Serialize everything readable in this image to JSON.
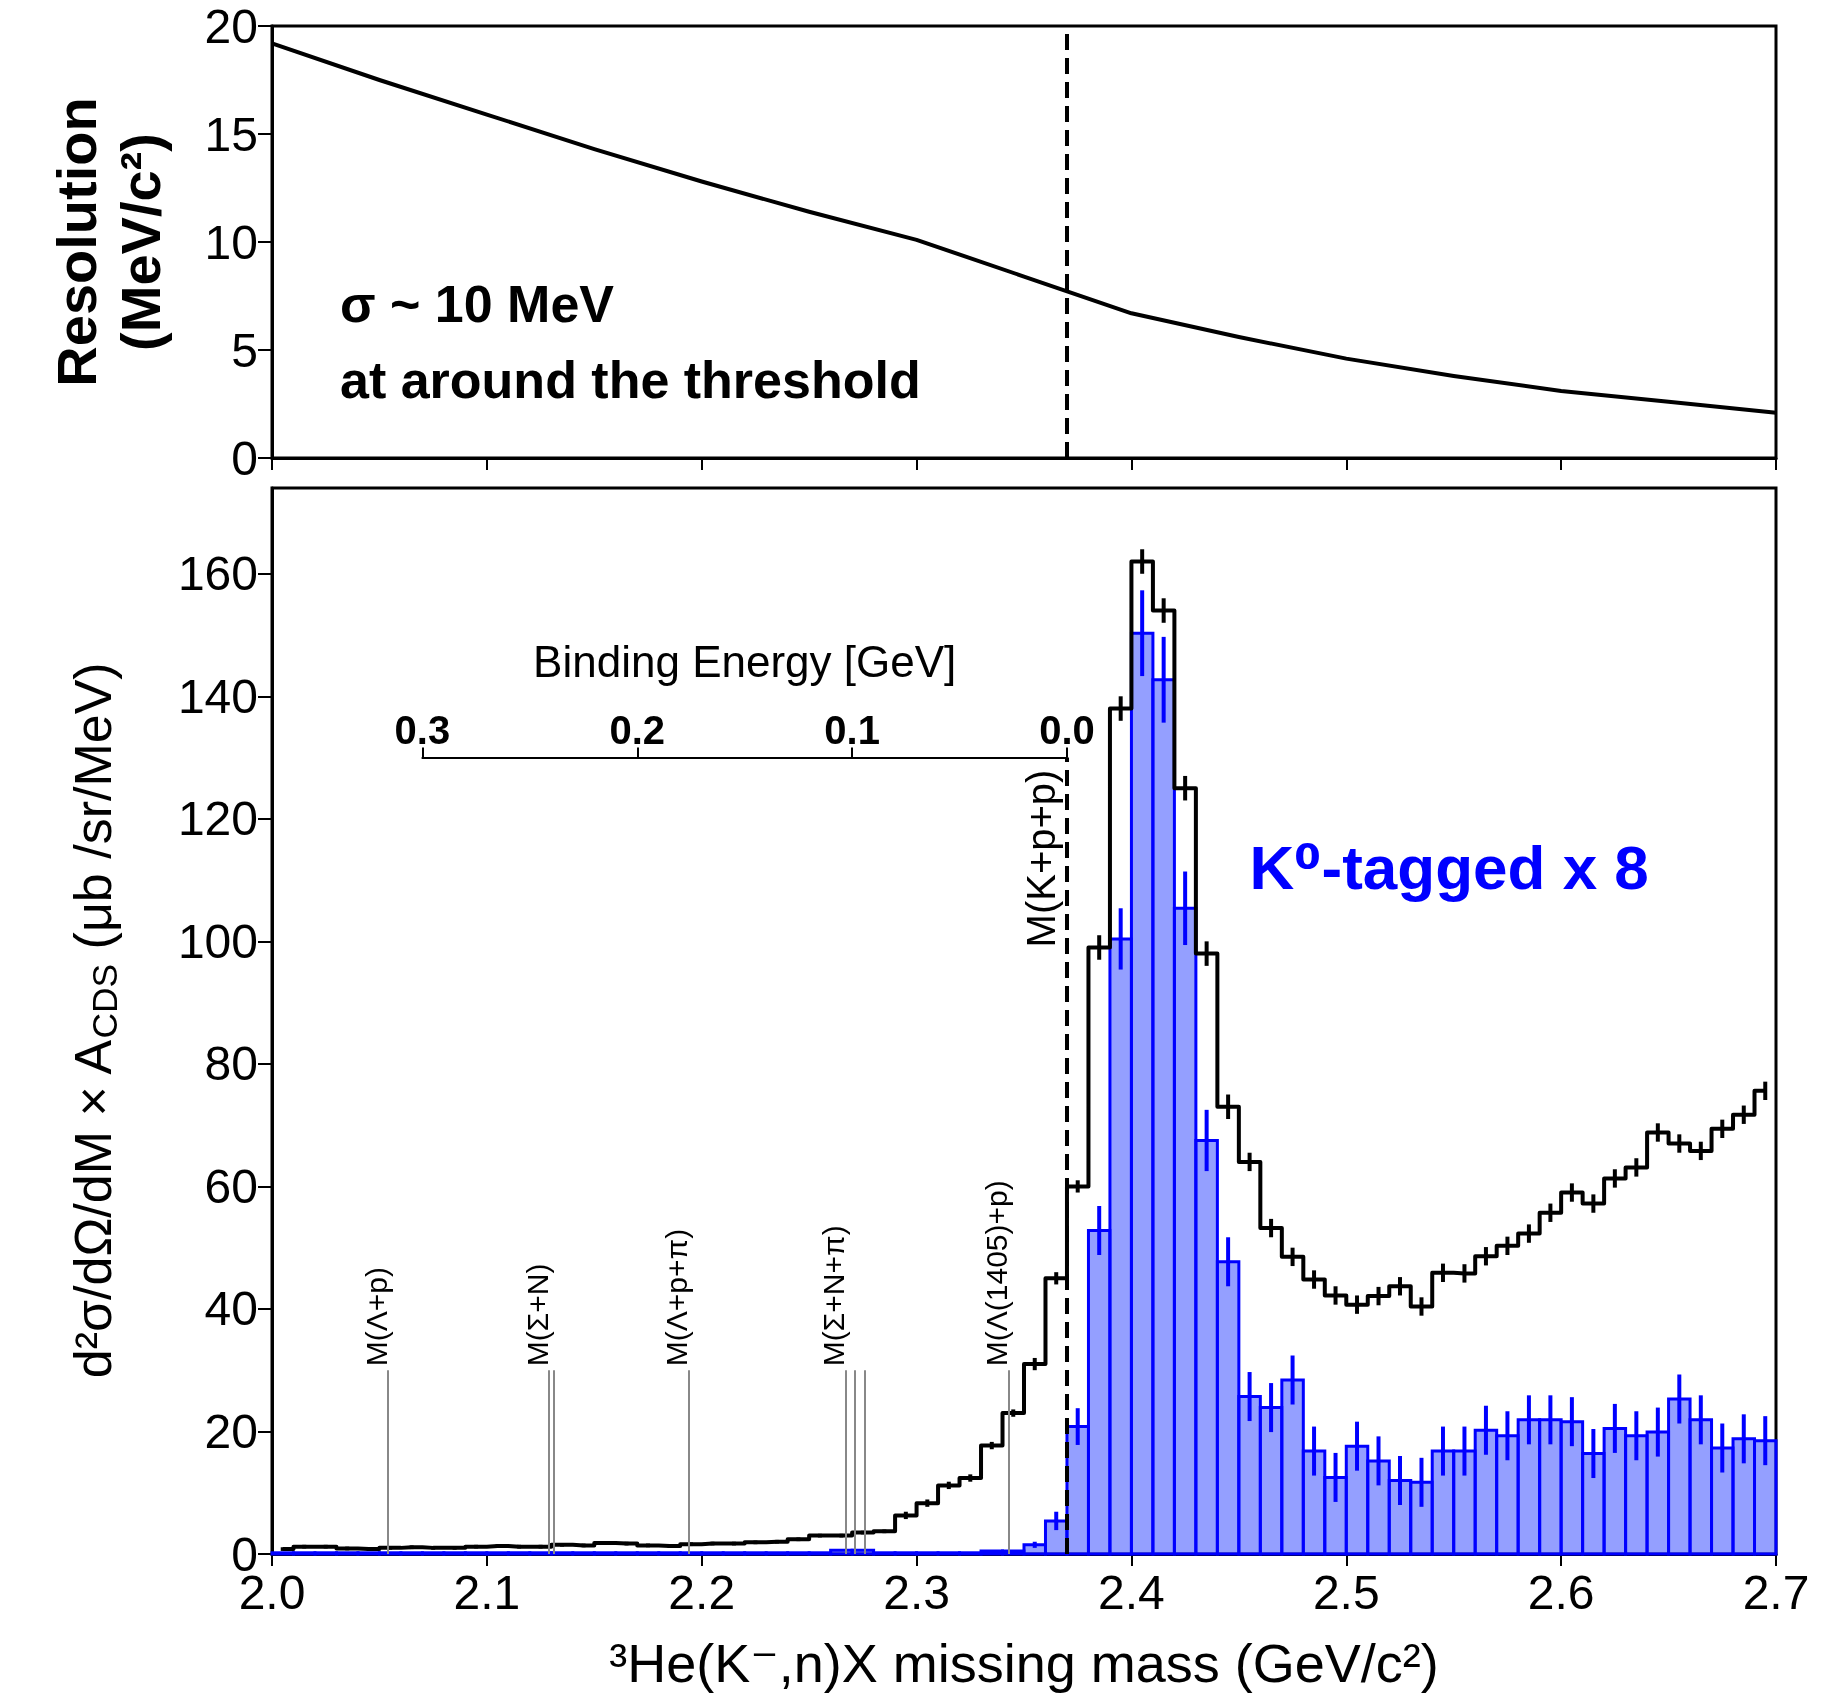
{
  "chart_data": [
    {
      "type": "line",
      "x": [
        2.0,
        2.05,
        2.1,
        2.15,
        2.2,
        2.25,
        2.3,
        2.35,
        2.4,
        2.45,
        2.5,
        2.55,
        2.6,
        2.65,
        2.7
      ],
      "values": [
        19.2,
        17.5,
        15.9,
        14.3,
        12.8,
        11.4,
        10.1,
        8.4,
        6.7,
        5.6,
        4.6,
        3.8,
        3.1,
        2.6,
        2.1
      ],
      "color": "#000000",
      "ylabel": "Resolution (MeV/c²)",
      "xlim": [
        2.0,
        2.7
      ],
      "xticks": [
        2.0,
        2.1,
        2.2,
        2.3,
        2.4,
        2.5,
        2.6,
        2.7
      ],
      "ylim": [
        0,
        20
      ],
      "yticks": [
        0,
        5,
        10,
        15,
        20
      ],
      "tick_labels": "y",
      "grid": false,
      "legend": false,
      "ref_lines": [
        {
          "axis": "x",
          "value": 2.37,
          "label": null,
          "color": "#000000",
          "line_style": "dashed"
        }
      ],
      "annotations": [
        "σ ~ 10 MeV",
        "at around the threshold"
      ]
    },
    {
      "type": "histogram",
      "bins": [
        2.0,
        2.01,
        2.02,
        2.03,
        2.04,
        2.05,
        2.06,
        2.07,
        2.08,
        2.09,
        2.1,
        2.11,
        2.12,
        2.13,
        2.14,
        2.15,
        2.16,
        2.17,
        2.18,
        2.19,
        2.2,
        2.21,
        2.22,
        2.23,
        2.24,
        2.25,
        2.26,
        2.27,
        2.28,
        2.29,
        2.3,
        2.31,
        2.32,
        2.33,
        2.34,
        2.35,
        2.36,
        2.37,
        2.38,
        2.39,
        2.4,
        2.41,
        2.42,
        2.43,
        2.44,
        2.45,
        2.46,
        2.47,
        2.48,
        2.49,
        2.5,
        2.51,
        2.52,
        2.53,
        2.54,
        2.55,
        2.56,
        2.57,
        2.58,
        2.59,
        2.6,
        2.61,
        2.62,
        2.63,
        2.64,
        2.65,
        2.66,
        2.67,
        2.68,
        2.69,
        2.7
      ],
      "series": [
        {
          "type": "step",
          "x": [
            2.005,
            2.015,
            2.025,
            2.035,
            2.045,
            2.055,
            2.065,
            2.075,
            2.085,
            2.095,
            2.105,
            2.115,
            2.125,
            2.135,
            2.145,
            2.155,
            2.165,
            2.175,
            2.185,
            2.195,
            2.205,
            2.215,
            2.225,
            2.235,
            2.245,
            2.255,
            2.265,
            2.275,
            2.285,
            2.295,
            2.305,
            2.315,
            2.325,
            2.335,
            2.345,
            2.355,
            2.365,
            2.375,
            2.385,
            2.395,
            2.405,
            2.415,
            2.425,
            2.435,
            2.445,
            2.455,
            2.465,
            2.475,
            2.485,
            2.495,
            2.505,
            2.515,
            2.525,
            2.535,
            2.545,
            2.555,
            2.565,
            2.575,
            2.585,
            2.595,
            2.605,
            2.615,
            2.625,
            2.635,
            2.645,
            2.655,
            2.665,
            2.675,
            2.685,
            2.695
          ],
          "color": "#000000",
          "values": [
            0.8,
            1.2,
            1.2,
            0.9,
            0.8,
            1.0,
            1.1,
            1.0,
            1.0,
            1.2,
            1.3,
            1.2,
            1.2,
            1.5,
            1.4,
            1.8,
            1.7,
            1.4,
            1.3,
            1.6,
            1.7,
            1.7,
            1.9,
            2.0,
            2.4,
            3.0,
            3.0,
            3.5,
            3.7,
            6.3,
            8.3,
            11.2,
            12.4,
            17.7,
            23,
            31,
            45,
            60,
            99,
            138,
            162,
            154,
            125,
            98,
            73,
            64,
            53.2,
            48.5,
            44.8,
            42.2,
            40.7,
            42.1,
            43.7,
            40.4,
            45.9,
            45.8,
            48.6,
            50.3,
            52.3,
            55.7,
            59.0,
            57.2,
            61.3,
            63.1,
            68.8,
            67.0,
            65.8,
            69.4,
            71.7,
            75.6
          ],
          "errors": [
            0.3,
            0.3,
            0.3,
            0.3,
            0.3,
            0.3,
            0.3,
            0.3,
            0.3,
            0.3,
            0.3,
            0.3,
            0.3,
            0.3,
            0.3,
            0.3,
            0.3,
            0.3,
            0.3,
            0.3,
            0.3,
            0.3,
            0.3,
            0.3,
            0.3,
            0.3,
            0.3,
            0.3,
            0.3,
            0.6,
            0.6,
            0.6,
            0.6,
            0.6,
            0.6,
            1,
            1,
            1,
            2,
            2,
            2,
            2,
            2,
            2,
            2,
            1.5,
            1.5,
            1.5,
            1.5,
            1.5,
            1.5,
            1.5,
            1.5,
            1.5,
            1.5,
            1.5,
            1.5,
            1.5,
            1.5,
            1.5,
            1.5,
            1.5,
            1.5,
            1.5,
            1.5,
            1.5,
            1.5,
            1.5,
            1.5,
            1.5
          ]
        },
        {
          "name": "K⁰-tagged x 8",
          "color": "#0000ff",
          "values": [
            0.2,
            0.2,
            0.2,
            0.2,
            0.2,
            0.2,
            0.2,
            0.2,
            0.2,
            0.2,
            0.2,
            0.2,
            0.2,
            0.2,
            0.2,
            0.2,
            0.2,
            0.2,
            0.2,
            0.2,
            0.2,
            0.2,
            0.2,
            0.2,
            0.2,
            0.2,
            0.6,
            0.6,
            0.2,
            0.2,
            0.2,
            0.2,
            0.2,
            0.5,
            0.5,
            1.5,
            5.4,
            20.8,
            52.8,
            100.4,
            150.3,
            142.7,
            105.4,
            67.5,
            47.7,
            25.7,
            23.9,
            28.4,
            16.8,
            12.5,
            17.6,
            15.2,
            12.0,
            11.7,
            16.8,
            16.8,
            20.2,
            19.3,
            21.9,
            21.9,
            21.6,
            16.4,
            20.5,
            19.3,
            19.9,
            25.3,
            21.9,
            17.3,
            18.8,
            18.5
          ],
          "errors": [
            null,
            null,
            null,
            null,
            null,
            null,
            null,
            null,
            null,
            null,
            null,
            null,
            null,
            null,
            null,
            null,
            null,
            null,
            null,
            null,
            null,
            null,
            null,
            null,
            null,
            null,
            null,
            null,
            null,
            null,
            null,
            null,
            null,
            null,
            null,
            0.5,
            1.5,
            3,
            4,
            5,
            7,
            7,
            6,
            5,
            4,
            4,
            4,
            4,
            4,
            4,
            4,
            4,
            4,
            4,
            4,
            4,
            4,
            4,
            4,
            4,
            4,
            4,
            4,
            4,
            4,
            4,
            4,
            4,
            4,
            4
          ]
        }
      ],
      "xlabel": "³He(K⁻,n)X missing mass (GeV/c²)",
      "ylabel": "d²σ/dΩ/dM × A$_{CDS}$ (μb /sr/MeV)",
      "xlim": [
        2.0,
        2.7
      ],
      "xticks": [
        {
          "value": 2.0,
          "label": "2.0"
        },
        2.1,
        2.2,
        2.3,
        2.4,
        2.5,
        2.6,
        2.7
      ],
      "ylim": [
        0,
        174
      ],
      "yticks": [
        0,
        20,
        40,
        60,
        80,
        100,
        120,
        140,
        160
      ],
      "x2label": "Binding Energy [GeV]",
      "x2lim": [
        0.3,
        0.0
      ],
      "x2ticks": [
        0.3,
        0.2,
        0.1,
        {
          "value": 0,
          "label": "0.0"
        }
      ],
      "grid": false,
      "legend": false,
      "ref_lines": [
        {
          "axis": "x",
          "value": 2.054,
          "label": "M(Λ+p)",
          "color": "#888888"
        },
        {
          "axis": "x",
          "value": 2.129,
          "label": "M(Σ+N)",
          "color": "#888888"
        },
        {
          "axis": "x",
          "value": 2.131,
          "label": null,
          "color": "#888888"
        },
        {
          "axis": "x",
          "value": 2.194,
          "label": "M(Λ+p+π)",
          "color": "#888888"
        },
        {
          "axis": "x",
          "value": 2.267,
          "label": "M(Σ+N+π)",
          "color": "#888888"
        },
        {
          "axis": "x",
          "value": 2.271,
          "label": null,
          "color": "#888888"
        },
        {
          "axis": "x",
          "value": 2.276,
          "label": null,
          "color": "#888888"
        },
        {
          "axis": "x",
          "value": 2.343,
          "label": "M(Λ(1405)+p)",
          "color": "#888888"
        },
        {
          "axis": "x",
          "value": 2.37,
          "label": "M(K+p+p)",
          "color": "#000000",
          "line_style": "dashed"
        }
      ]
    }
  ]
}
